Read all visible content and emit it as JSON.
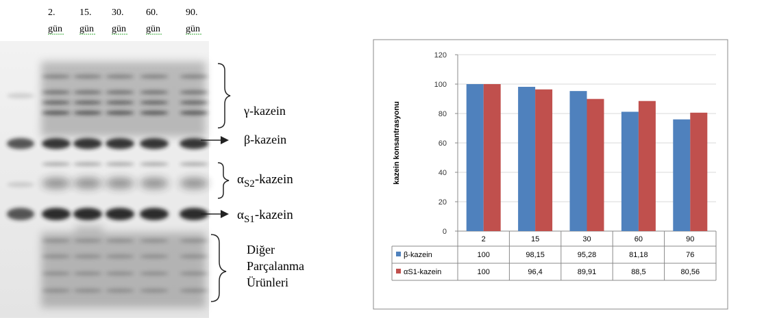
{
  "gel": {
    "lanes": [
      {
        "day": "2.",
        "unit": "gün"
      },
      {
        "day": "15.",
        "unit": "gün"
      },
      {
        "day": "30.",
        "unit": "gün"
      },
      {
        "day": "60.",
        "unit": "gün"
      },
      {
        "day": "90.",
        "unit": "gün"
      }
    ],
    "bands": [
      {
        "parts": [
          "γ-kazein"
        ]
      },
      {
        "parts": [
          "β-kazein"
        ]
      },
      {
        "parts": [
          "α",
          "S2",
          "-kazein"
        ]
      },
      {
        "parts": [
          "α",
          "S1",
          "-kazein"
        ]
      },
      {
        "parts": [
          "Diğer",
          "Parçalanma",
          "Ürünleri"
        ]
      }
    ]
  },
  "chart_data": {
    "type": "bar",
    "y_label": "kazein konsantrasyonu",
    "categories": [
      "2",
      "15",
      "30",
      "60",
      "90"
    ],
    "series": [
      {
        "name": "β-kazein",
        "color": "#4f81bd",
        "values": [
          100,
          98.15,
          95.28,
          81.18,
          76
        ],
        "value_labels": [
          "100",
          "98,15",
          "95,28",
          "81,18",
          "76"
        ]
      },
      {
        "name": "αS1-kazein",
        "color": "#c0504d",
        "values": [
          100,
          96.4,
          89.91,
          88.5,
          80.56
        ],
        "value_labels": [
          "100",
          "96,4",
          "89,91",
          "88,5",
          "80,56"
        ]
      }
    ],
    "ylim": [
      0,
      120
    ],
    "yticks": [
      0,
      20,
      40,
      60,
      80,
      100,
      120
    ],
    "grid": true
  }
}
